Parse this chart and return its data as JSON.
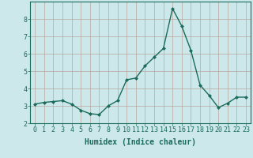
{
  "x": [
    0,
    1,
    2,
    3,
    4,
    5,
    6,
    7,
    8,
    9,
    10,
    11,
    12,
    13,
    14,
    15,
    16,
    17,
    18,
    19,
    20,
    21,
    22,
    23
  ],
  "y": [
    3.1,
    3.2,
    3.25,
    3.3,
    3.1,
    2.75,
    2.55,
    2.5,
    3.0,
    3.3,
    4.5,
    4.6,
    5.3,
    5.8,
    6.3,
    8.6,
    7.6,
    6.2,
    4.2,
    3.6,
    2.9,
    3.15,
    3.5,
    3.5
  ],
  "line_color": "#1a6b5a",
  "marker": "D",
  "marker_size": 2.0,
  "bg_color": "#cce8ea",
  "grid_color": "#b8a8a0",
  "xlabel": "Humidex (Indice chaleur)",
  "ylim": [
    2,
    9
  ],
  "xlim": [
    -0.5,
    23.5
  ],
  "yticks": [
    2,
    3,
    4,
    5,
    6,
    7,
    8
  ],
  "xticks": [
    0,
    1,
    2,
    3,
    4,
    5,
    6,
    7,
    8,
    9,
    10,
    11,
    12,
    13,
    14,
    15,
    16,
    17,
    18,
    19,
    20,
    21,
    22,
    23
  ],
  "tick_color": "#1a6b5a",
  "xlabel_fontsize": 7.0,
  "tick_fontsize": 6.0,
  "line_width": 1.0,
  "spine_color": "#1a6b5a"
}
